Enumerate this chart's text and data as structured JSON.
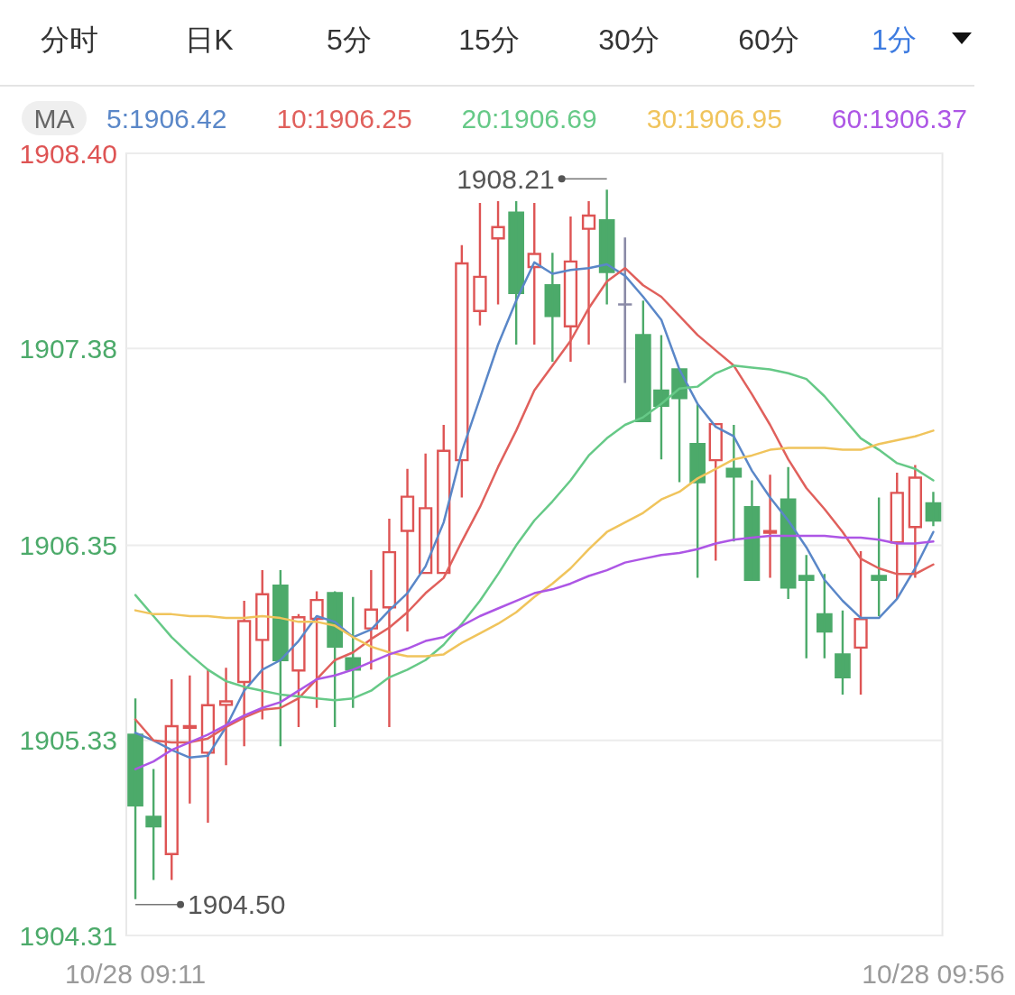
{
  "chart_data": {
    "type": "candlestick",
    "annotations": [
      "分时",
      "日K",
      "5分",
      "15分",
      "30分",
      "60分",
      "1分",
      "1908.21",
      "1904.50"
    ],
    "legend_title": "MA",
    "legend": "top",
    "grid": "y",
    "categories": [
      "10/28 09:11",
      null,
      null,
      null,
      null,
      null,
      null,
      null,
      null,
      null,
      null,
      null,
      null,
      null,
      null,
      null,
      null,
      null,
      null,
      null,
      null,
      null,
      null,
      null,
      null,
      null,
      null,
      null,
      null,
      null,
      null,
      null,
      null,
      null,
      null,
      null,
      null,
      null,
      null,
      null,
      null,
      null,
      null,
      null,
      "10/28 09:56"
    ],
    "ohlc": [
      [
        1905.36,
        1905.55,
        1904.5,
        1904.99
      ],
      [
        1904.93,
        1905.18,
        1904.6,
        1904.88
      ],
      [
        1904.73,
        1905.65,
        1904.6,
        1905.41
      ],
      [
        1905.39,
        1905.67,
        1905.0,
        1905.41
      ],
      [
        1905.26,
        1905.7,
        1904.9,
        1905.52
      ],
      [
        1905.51,
        1905.71,
        1905.2,
        1905.54
      ],
      [
        1905.63,
        1906.06,
        1905.3,
        1905.96
      ],
      [
        1905.85,
        1906.22,
        1905.44,
        1906.1
      ],
      [
        1906.14,
        1906.22,
        1905.3,
        1905.75
      ],
      [
        1905.69,
        1905.99,
        1905.4,
        1905.98
      ],
      [
        1905.96,
        1906.11,
        1905.5,
        1906.07
      ],
      [
        1906.1,
        1906.11,
        1905.4,
        1905.82
      ],
      [
        1905.76,
        1906.08,
        1905.5,
        1905.7
      ],
      [
        1905.91,
        1906.22,
        1905.7,
        1906.02
      ],
      [
        1906.02,
        1906.49,
        1905.4,
        1906.32
      ],
      [
        1906.42,
        1906.75,
        1905.9,
        1906.61
      ],
      [
        1906.2,
        1906.83,
        1906.2,
        1906.55
      ],
      [
        1906.2,
        1906.98,
        1906.2,
        1906.85
      ],
      [
        1906.79,
        1907.92,
        1906.6,
        1907.83
      ],
      [
        1907.57,
        1908.14,
        1907.5,
        1907.76
      ],
      [
        1907.95,
        1908.15,
        1907.61,
        1908.02
      ],
      [
        1908.09,
        1908.15,
        1907.4,
        1907.67
      ],
      [
        1907.8,
        1908.14,
        1907.4,
        1907.88
      ],
      [
        1907.71,
        1907.88,
        1907.31,
        1907.55
      ],
      [
        1907.49,
        1908.07,
        1907.31,
        1907.84
      ],
      [
        1908.0,
        1908.15,
        1907.4,
        1908.08
      ],
      [
        1908.05,
        1908.21,
        1907.61,
        1907.78
      ],
      [
        1907.61,
        1907.96,
        1907.2,
        1907.61
      ],
      [
        1907.45,
        1907.63,
        1907.0,
        1907.0
      ],
      [
        1907.16,
        1907.45,
        1906.8,
        1907.08
      ],
      [
        1907.27,
        1907.27,
        1906.68,
        1907.12
      ],
      [
        1906.88,
        1907.09,
        1906.18,
        1906.68
      ],
      [
        1906.79,
        1906.99,
        1906.27,
        1906.99
      ],
      [
        1906.75,
        1906.98,
        1906.37,
        1906.71
      ],
      [
        1906.55,
        1906.69,
        1906.17,
        1906.17
      ],
      [
        1906.41,
        1906.72,
        1906.18,
        1906.43
      ],
      [
        1906.59,
        1906.76,
        1906.07,
        1906.13
      ],
      [
        1906.19,
        1906.3,
        1905.76,
        1906.17
      ],
      [
        1905.99,
        1906.2,
        1905.76,
        1905.9
      ],
      [
        1905.78,
        1906.01,
        1905.57,
        1905.66
      ],
      [
        1905.81,
        1906.32,
        1905.57,
        1905.97
      ],
      [
        1906.19,
        1906.6,
        1905.98,
        1906.17
      ],
      [
        1906.36,
        1906.73,
        1906.07,
        1906.63
      ],
      [
        1906.44,
        1906.77,
        1906.18,
        1906.71
      ],
      [
        1906.57,
        1906.63,
        1906.45,
        1906.48
      ]
    ],
    "colors": [
      "#4caa6a",
      "#4caa6a",
      "#de5454",
      "#de5454",
      "#de5454",
      "#de5454",
      "#de5454",
      "#de5454",
      "#4caa6a",
      "#de5454",
      "#de5454",
      "#4caa6a",
      "#4caa6a",
      "#de5454",
      "#de5454",
      "#de5454",
      "#de5454",
      "#de5454",
      "#de5454",
      "#de5454",
      "#de5454",
      "#4caa6a",
      "#de5454",
      "#4caa6a",
      "#de5454",
      "#de5454",
      "#4caa6a",
      "#8a8aa6",
      "#4caa6a",
      "#4caa6a",
      "#4caa6a",
      "#4caa6a",
      "#de5454",
      "#4caa6a",
      "#4caa6a",
      "#de5454",
      "#4caa6a",
      "#4caa6a",
      "#4caa6a",
      "#4caa6a",
      "#de5454",
      "#4caa6a",
      "#de5454",
      "#de5454",
      "#4caa6a"
    ],
    "series": [
      {
        "name": "5:1906.42",
        "type": "line",
        "color": "#5a87c8",
        "values": [
          1905.37,
          1905.33,
          1905.28,
          1905.24,
          1905.25,
          1905.4,
          1905.59,
          1905.7,
          1905.75,
          1905.85,
          1905.98,
          1905.95,
          1905.87,
          1905.91,
          1906.01,
          1906.1,
          1906.24,
          1906.47,
          1906.84,
          1907.12,
          1907.4,
          1907.63,
          1907.83,
          1907.77,
          1907.79,
          1907.8,
          1907.82,
          1907.76,
          1907.65,
          1907.53,
          1907.27,
          1907.09,
          1906.97,
          1906.92,
          1906.74,
          1906.6,
          1906.48,
          1906.34,
          1906.17,
          1906.06,
          1905.97,
          1905.97,
          1906.07,
          1906.23,
          1906.42
        ]
      },
      {
        "name": "10:1906.25",
        "type": "line",
        "color": "#e0605c",
        "values": [
          1905.44,
          1905.33,
          1905.32,
          1905.32,
          1905.34,
          1905.4,
          1905.45,
          1905.49,
          1905.5,
          1905.55,
          1905.65,
          1905.75,
          1905.79,
          1905.86,
          1905.92,
          1906.0,
          1906.1,
          1906.18,
          1906.37,
          1906.55,
          1906.76,
          1906.95,
          1907.16,
          1907.29,
          1907.42,
          1907.59,
          1907.73,
          1907.8,
          1907.71,
          1907.65,
          1907.55,
          1907.45,
          1907.37,
          1907.29,
          1907.14,
          1906.98,
          1906.8,
          1906.65,
          1906.54,
          1906.42,
          1906.28,
          1906.23,
          1906.2,
          1906.2,
          1906.25
        ]
      },
      {
        "name": "20:1906.69",
        "type": "line",
        "color": "#66c987",
        "values": [
          1906.09,
          1905.98,
          1905.87,
          1905.78,
          1905.7,
          1905.64,
          1905.61,
          1905.59,
          1905.57,
          1905.56,
          1905.55,
          1905.54,
          1905.55,
          1905.59,
          1905.66,
          1905.7,
          1905.75,
          1905.83,
          1905.94,
          1906.06,
          1906.2,
          1906.35,
          1906.48,
          1906.58,
          1906.69,
          1906.82,
          1906.91,
          1906.98,
          1907.02,
          1907.09,
          1907.17,
          1907.18,
          1907.25,
          1907.29,
          1907.28,
          1907.27,
          1907.25,
          1907.22,
          1907.13,
          1907.02,
          1906.91,
          1906.85,
          1906.78,
          1906.75,
          1906.69
        ]
      },
      {
        "name": "30:1906.95",
        "type": "line",
        "color": "#f0c45c",
        "values": [
          1906.01,
          1905.99,
          1905.99,
          1905.98,
          1905.98,
          1905.97,
          1905.97,
          1905.98,
          1905.97,
          1905.95,
          1905.95,
          1905.93,
          1905.87,
          1905.82,
          1905.79,
          1905.77,
          1905.77,
          1905.78,
          1905.84,
          1905.89,
          1905.94,
          1906.0,
          1906.08,
          1906.15,
          1906.23,
          1906.33,
          1906.42,
          1906.47,
          1906.52,
          1906.59,
          1906.63,
          1906.7,
          1906.75,
          1906.8,
          1906.82,
          1906.85,
          1906.86,
          1906.86,
          1906.86,
          1906.85,
          1906.85,
          1906.88,
          1906.9,
          1906.92,
          1906.95
        ]
      },
      {
        "name": "60:1906.37",
        "type": "line",
        "color": "#ad56e5",
        "values": [
          1905.18,
          1905.22,
          1905.28,
          1905.32,
          1905.36,
          1905.41,
          1905.46,
          1905.5,
          1905.53,
          1905.59,
          1905.65,
          1905.67,
          1905.7,
          1905.74,
          1905.78,
          1905.81,
          1905.85,
          1905.87,
          1905.93,
          1905.98,
          1906.02,
          1906.06,
          1906.1,
          1906.12,
          1906.15,
          1906.19,
          1906.22,
          1906.26,
          1906.28,
          1906.3,
          1906.31,
          1906.33,
          1906.36,
          1906.38,
          1906.39,
          1906.4,
          1906.4,
          1906.4,
          1906.4,
          1906.39,
          1906.39,
          1906.38,
          1906.36,
          1906.36,
          1906.37
        ]
      }
    ],
    "ylim": [
      1904.31,
      1908.4
    ],
    "yticks": [
      {
        "value": 1904.31,
        "label": "1904.31"
      },
      {
        "value": 1905.33,
        "label": "1905.33"
      },
      {
        "value": 1906.35,
        "label": "1906.35"
      },
      {
        "value": 1907.38,
        "label": "1907.38"
      },
      {
        "value": 1908.4,
        "label": "1908.40"
      }
    ]
  }
}
